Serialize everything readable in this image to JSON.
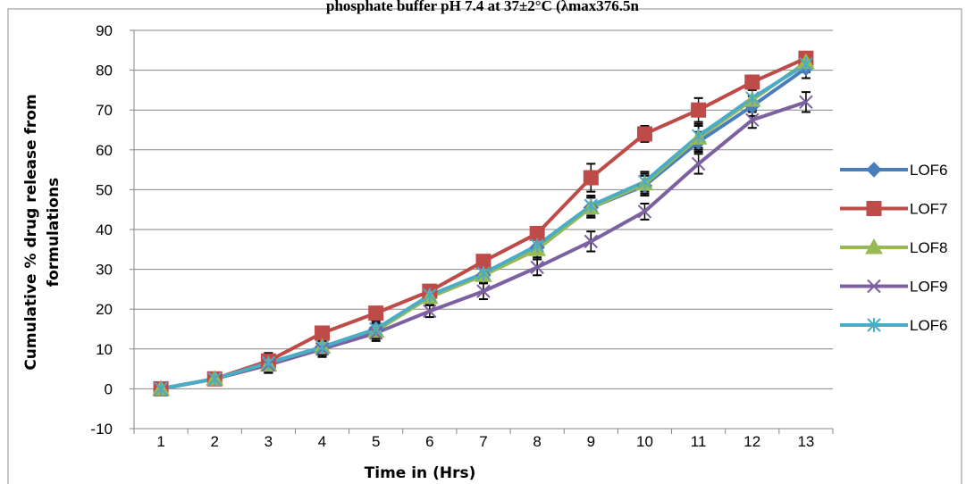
{
  "chart_data": {
    "type": "line",
    "title": "phosphate buffer pH 7.4 at 37±2°C (λmax376.5n",
    "xlabel": "Time in (Hrs)",
    "ylabel_line1": "Cumulative % drug release from",
    "ylabel_line2": "formulations",
    "categories": [
      "1",
      "2",
      "3",
      "4",
      "5",
      "6",
      "7",
      "8",
      "9",
      "10",
      "11",
      "12",
      "13"
    ],
    "ylim": [
      -10,
      90
    ],
    "yticks": [
      -10,
      0,
      10,
      20,
      30,
      40,
      50,
      60,
      70,
      80,
      90
    ],
    "grid": "horizontal",
    "legend_position": "right",
    "error_bar_color": "#000000",
    "series": [
      {
        "name": "LOF6",
        "color": "#4a7ebb",
        "marker": "diamond",
        "values": [
          0,
          2.5,
          6.5,
          10.5,
          15,
          23,
          28.5,
          35.5,
          45.5,
          51,
          62,
          71,
          80.5
        ],
        "errors": [
          1.5,
          1.5,
          2.5,
          2,
          2,
          2,
          2,
          2.5,
          2.5,
          2.5,
          2.5,
          2.5,
          2.5
        ]
      },
      {
        "name": "LOF7",
        "color": "#be4b48",
        "marker": "square",
        "values": [
          0,
          2.5,
          7,
          14,
          19,
          24.5,
          32,
          39,
          53,
          64,
          70,
          77,
          83
        ],
        "errors": [
          1.5,
          1.5,
          1.5,
          1.5,
          1.5,
          1.5,
          1.5,
          1.5,
          3.5,
          2,
          3,
          1.5,
          1.5
        ]
      },
      {
        "name": "LOF8",
        "color": "#98b954",
        "marker": "triangle",
        "values": [
          0,
          2.5,
          6,
          10.5,
          14.5,
          23,
          28.5,
          35,
          45.5,
          51.5,
          63,
          72.5,
          82
        ],
        "errors": [
          1.5,
          1.5,
          2,
          2,
          2,
          2,
          2,
          2.5,
          2.5,
          2.5,
          3,
          2.5,
          2
        ]
      },
      {
        "name": "LOF9",
        "color": "#7d60a0",
        "marker": "x",
        "values": [
          0,
          2.5,
          6,
          10,
          14,
          19.5,
          24.5,
          30.5,
          37,
          44.5,
          56.5,
          67.5,
          72
        ],
        "errors": [
          1.5,
          1.5,
          2,
          2,
          2,
          1.5,
          2,
          2,
          2.5,
          2,
          2.5,
          2,
          2.5
        ]
      },
      {
        "name": "LOF6",
        "color": "#4bacc6",
        "marker": "star",
        "values": [
          0,
          2.5,
          6.5,
          10.5,
          15,
          23.5,
          29,
          36,
          46,
          52,
          63.5,
          73,
          81.5
        ],
        "errors": [
          1.5,
          1.5,
          2,
          2,
          2,
          2,
          2,
          2,
          2.5,
          2.5,
          3,
          2.5,
          2
        ]
      }
    ]
  }
}
